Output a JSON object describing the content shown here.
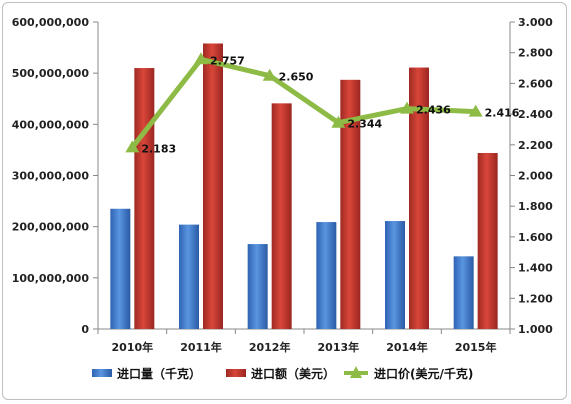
{
  "chart_data": {
    "type": "bar",
    "categories": [
      "2010年",
      "2011年",
      "2012年",
      "2013年",
      "2014年",
      "2015年"
    ],
    "series": [
      {
        "name": "进口量（千克）",
        "kind": "bar",
        "axis": "left",
        "color": "#3f7ad0",
        "values": [
          235000000,
          204000000,
          166000000,
          209000000,
          211000000,
          142000000
        ]
      },
      {
        "name": "进口额（美元）",
        "kind": "bar",
        "axis": "left",
        "color": "#c0392b",
        "values": [
          510000000,
          558000000,
          441000000,
          487000000,
          511000000,
          344000000
        ]
      },
      {
        "name": "进口价(美元/千克)",
        "kind": "line",
        "axis": "right",
        "color": "#8dbb45",
        "values": [
          2.183,
          2.757,
          2.65,
          2.344,
          2.436,
          2.416
        ],
        "labels": [
          "2.183",
          "2.757",
          "2.650",
          "2.344",
          "2.436",
          "2.416"
        ]
      }
    ],
    "y_left": {
      "min": 0,
      "max": 600000000,
      "step": 100000000,
      "tick_labels": [
        "0",
        "100,000,000",
        "200,000,000",
        "300,000,000",
        "400,000,000",
        "500,000,000",
        "600,000,000"
      ]
    },
    "y_right": {
      "min": 1.0,
      "max": 3.0,
      "step": 0.2,
      "tick_labels": [
        "1.000",
        "1.200",
        "1.400",
        "1.600",
        "1.800",
        "2.000",
        "2.200",
        "2.400",
        "2.600",
        "2.800",
        "3.000"
      ]
    },
    "grid": false,
    "legend_position": "bottom"
  }
}
